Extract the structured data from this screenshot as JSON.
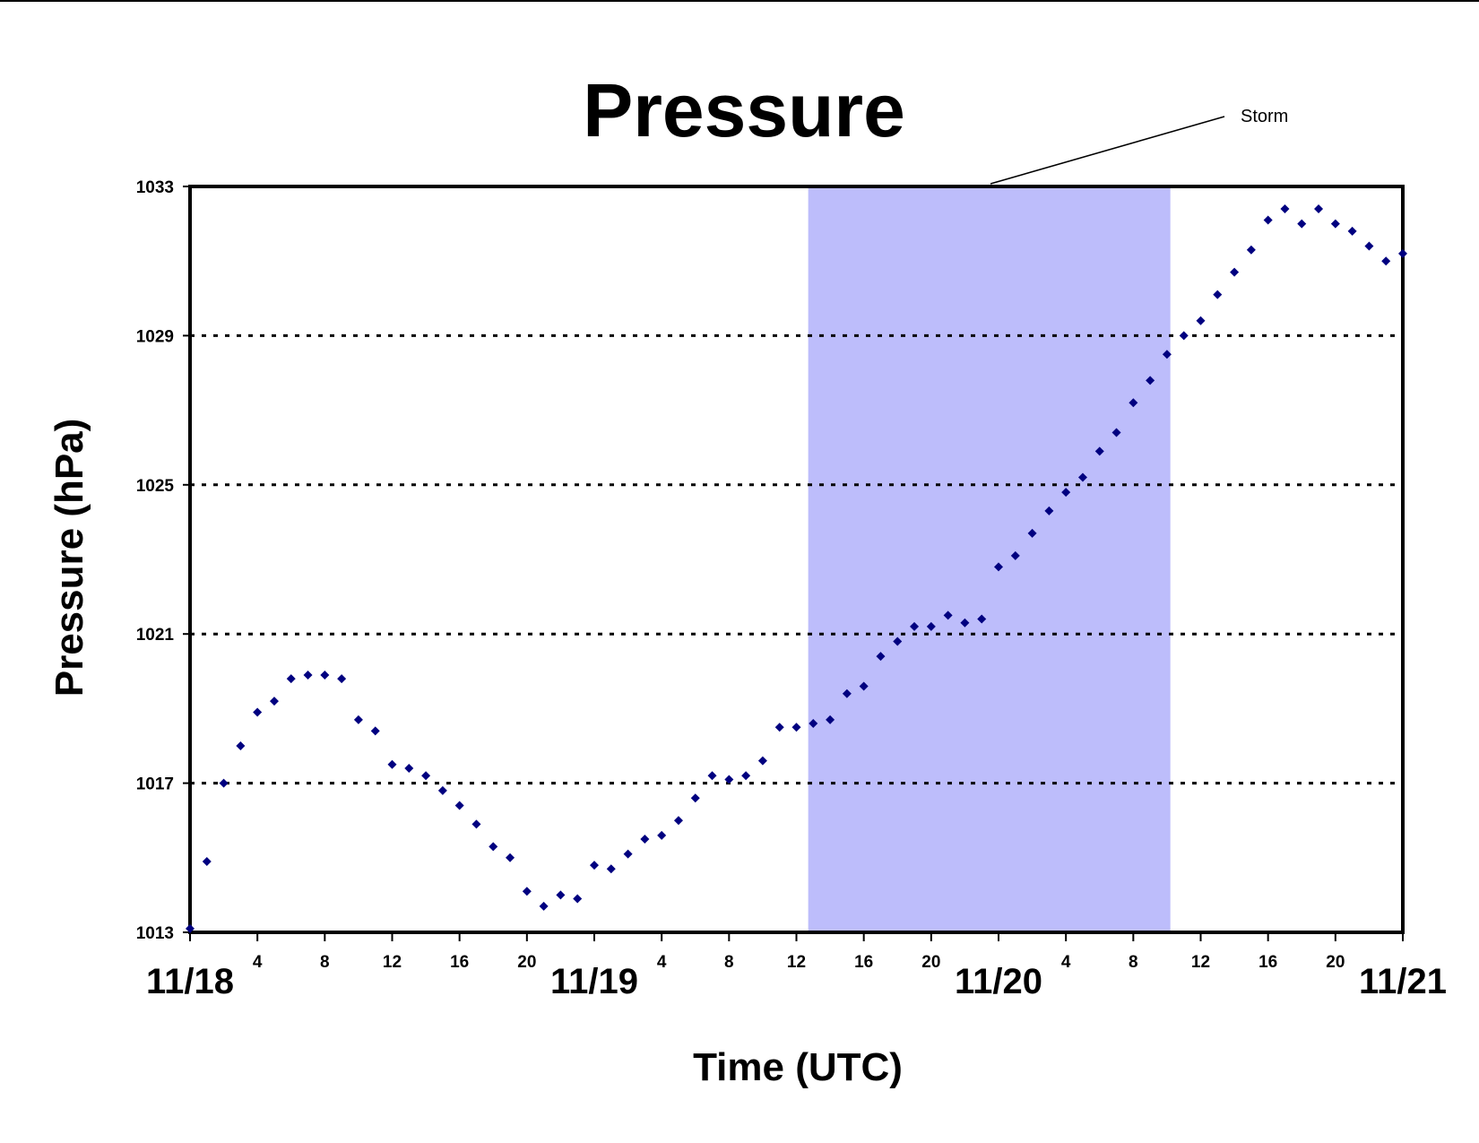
{
  "chart_data": {
    "type": "scatter",
    "title": "Pressure",
    "xlabel": "Time (UTC)",
    "ylabel": "Pressure (hPa)",
    "x_unit": "hours since 11/18 00 UTC",
    "xlim": [
      0,
      72
    ],
    "ylim": [
      1013,
      1033
    ],
    "y_ticks": [
      1013,
      1017,
      1021,
      1025,
      1029,
      1033
    ],
    "x_ticks": [
      {
        "hour": 4,
        "label": "4"
      },
      {
        "hour": 8,
        "label": "8"
      },
      {
        "hour": 12,
        "label": "12"
      },
      {
        "hour": 16,
        "label": "16"
      },
      {
        "hour": 20,
        "label": "20"
      },
      {
        "hour": 24,
        "label": ""
      },
      {
        "hour": 28,
        "label": "4"
      },
      {
        "hour": 32,
        "label": "8"
      },
      {
        "hour": 36,
        "label": "12"
      },
      {
        "hour": 40,
        "label": "16"
      },
      {
        "hour": 44,
        "label": "20"
      },
      {
        "hour": 48,
        "label": ""
      },
      {
        "hour": 52,
        "label": "4"
      },
      {
        "hour": 56,
        "label": "8"
      },
      {
        "hour": 60,
        "label": "12"
      },
      {
        "hour": 64,
        "label": "16"
      },
      {
        "hour": 68,
        "label": "20"
      },
      {
        "hour": 72,
        "label": ""
      }
    ],
    "date_labels": [
      {
        "hour": 0,
        "label": "11/18"
      },
      {
        "hour": 24,
        "label": "11/19"
      },
      {
        "hour": 48,
        "label": "11/20"
      },
      {
        "hour": 72,
        "label": "11/21"
      }
    ],
    "grid": "horizontal dotted",
    "shaded_region": {
      "label": "Storm",
      "x_start": 36.7,
      "x_end": 58.2,
      "color": "#bdbdfb"
    },
    "marker_color": "#000080",
    "series": [
      {
        "x": [
          0,
          1,
          2,
          3,
          4,
          5,
          6,
          7,
          8,
          9,
          10,
          11,
          12,
          13,
          14,
          15,
          16,
          17,
          18,
          19,
          20,
          21,
          22,
          23,
          24,
          25,
          26,
          27,
          28,
          29,
          30,
          31,
          32,
          33,
          34,
          35,
          36,
          37,
          38,
          39,
          40,
          41,
          42,
          43,
          44,
          45,
          46,
          47,
          48,
          49,
          50,
          51,
          52,
          53,
          54,
          55,
          56,
          57,
          58,
          59,
          60,
          61,
          62,
          63,
          64,
          65,
          66,
          67,
          68,
          69,
          70,
          71,
          72
        ],
        "y": [
          1013.1,
          1014.9,
          1017.0,
          1018.0,
          1018.9,
          1019.2,
          1019.8,
          1019.9,
          1019.9,
          1019.8,
          1018.7,
          1018.4,
          1017.5,
          1017.4,
          1017.2,
          1016.8,
          1016.4,
          1015.9,
          1015.3,
          1015.0,
          1014.1,
          1013.7,
          1014.0,
          1013.9,
          1014.8,
          1014.7,
          1015.1,
          1015.5,
          1015.6,
          1016.0,
          1016.6,
          1017.2,
          1017.1,
          1017.2,
          1017.6,
          1018.5,
          1018.5,
          1018.6,
          1018.7,
          1019.4,
          1019.6,
          1020.4,
          1020.8,
          1021.2,
          1021.2,
          1021.5,
          1021.3,
          1021.4,
          1022.8,
          1023.1,
          1023.7,
          1024.3,
          1024.8,
          1025.2,
          1025.9,
          1026.4,
          1027.2,
          1027.8,
          1028.5,
          1029.0,
          1029.4,
          1030.1,
          1030.7,
          1031.3,
          1032.1,
          1032.4,
          1032.0,
          1032.4,
          1032.0,
          1031.8,
          1031.4,
          1031.0,
          1031.2
        ]
      }
    ]
  }
}
